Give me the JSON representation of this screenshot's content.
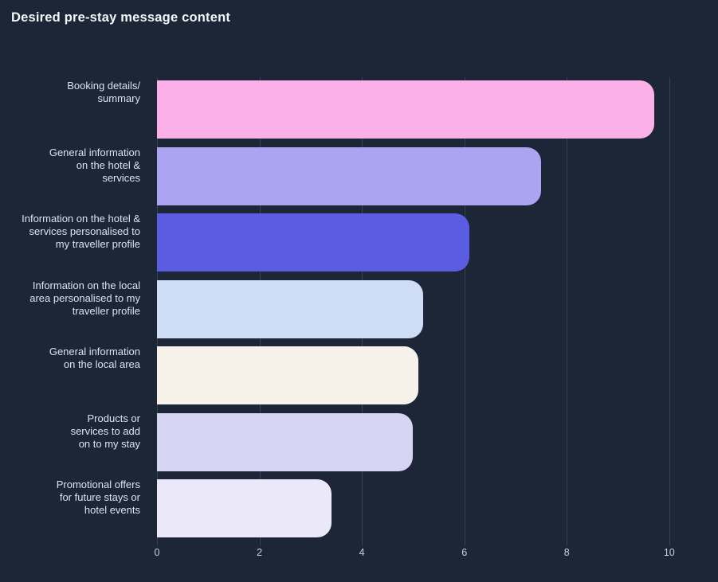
{
  "title": "Desired pre-stay message content",
  "chart_data": {
    "type": "bar",
    "orientation": "horizontal",
    "title": "Desired pre-stay message content",
    "categories": [
      "Booking details/\nsummary",
      "General information\non the hotel &\nservices",
      "Information on the hotel &\nservices personalised to\nmy traveller profile",
      "Information on the local\narea personalised to my\ntraveller profile",
      "General information\non the local area",
      "Products or\nservices to add\non to my stay",
      "Promotional offers\nfor future stays or\nhotel events"
    ],
    "values": [
      9.7,
      7.5,
      6.1,
      5.2,
      5.1,
      5.0,
      3.4
    ],
    "bar_colors": [
      "#FBB0E9",
      "#ABA4F1",
      "#5A5DE1",
      "#CEDCF6",
      "#F6F2E9",
      "#D7D3F3",
      "#EAE8F9"
    ],
    "xlabel": "",
    "ylabel": "",
    "xticks": [
      0,
      2,
      4,
      6,
      8,
      10
    ],
    "xlim": [
      0,
      10.47
    ],
    "grid": "vertical-on",
    "legend": "none"
  },
  "theme": {
    "background": "#1C2637",
    "title_color": "#F5F7FB",
    "label_color": "#DCE3EF",
    "tick_color": "#C9D1E0",
    "gridline_color": "#36405A"
  }
}
